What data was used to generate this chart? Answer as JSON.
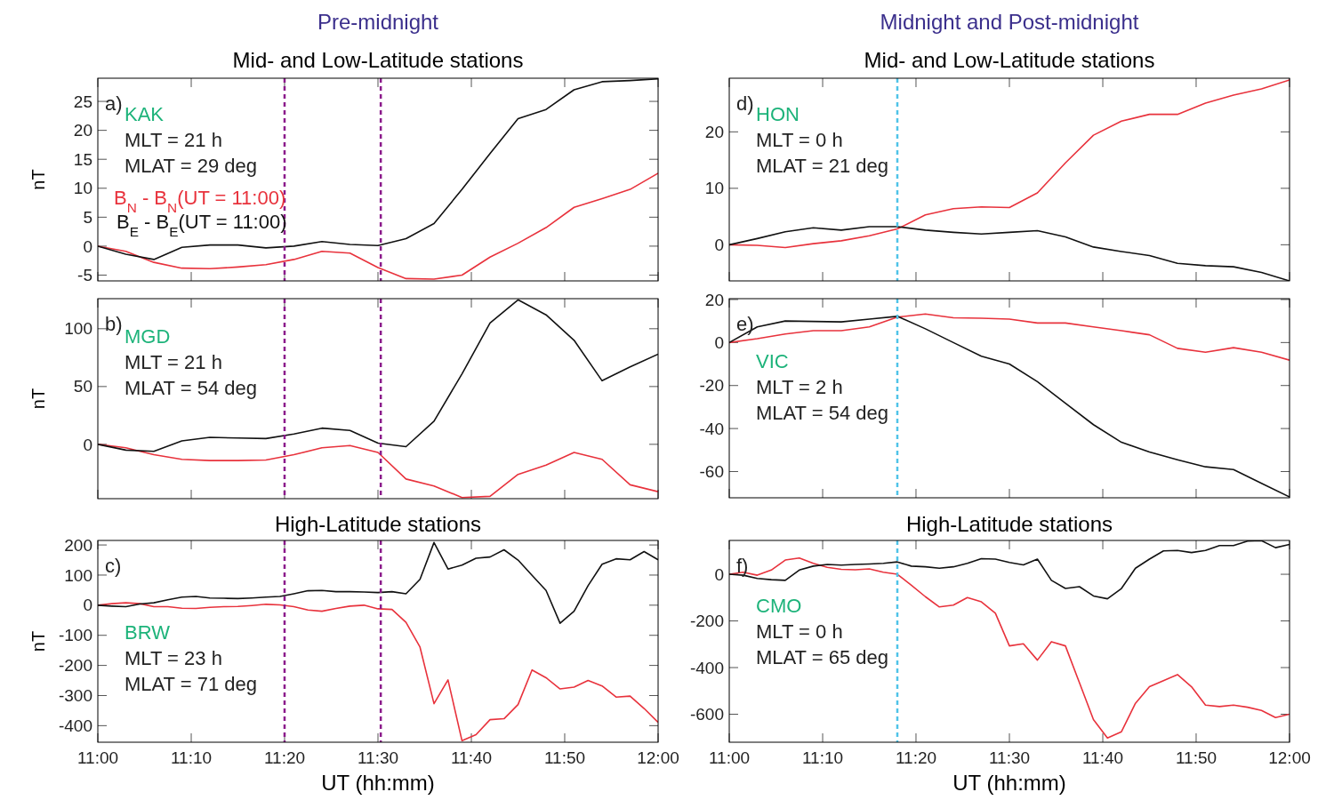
{
  "chart_data": [
    {
      "type": "line",
      "title": "Pre-midnight",
      "subtitle": "Mid- and Low-Latitude stations",
      "ylabel": "nT",
      "legend": "left",
      "tick_labels": "y",
      "x": [
        11,
        11.05,
        11.1,
        11.15,
        11.2,
        11.25,
        11.3,
        11.35,
        11.4,
        11.45,
        11.5,
        11.55,
        11.6,
        11.65,
        11.7,
        11.75,
        11.8,
        11.85,
        11.9,
        11.95,
        12
      ],
      "series": [
        {
          "name": "B$_{N}$ - B$_{N}$(UT = 11:00)",
          "color": "#e8323c",
          "values": [
            0,
            -0.9,
            -2.8,
            -3.8,
            -3.9,
            -3.6,
            -3.2,
            -2.3,
            -0.9,
            -1.2,
            -3.7,
            -5.6,
            -5.7,
            -5,
            -1.9,
            0.5,
            3.2,
            6.7,
            8.2,
            9.8,
            12.6
          ]
        },
        {
          "name": "B$_{E}$ - B$_{E}$(UT = 11:00)",
          "color": "#111111",
          "values": [
            0,
            -1.4,
            -2.3,
            -0.2,
            0.2,
            0.2,
            -0.3,
            0,
            0.8,
            0.3,
            0.1,
            1.3,
            3.9,
            9.8,
            16,
            22,
            23.6,
            27,
            28.4,
            28.6,
            28.9
          ]
        }
      ],
      "xlim": [
        11,
        12
      ],
      "xticks": [
        {
          "value": 11,
          "label": null
        },
        {
          "value": 11.1667,
          "label": null
        },
        {
          "value": 11.3333,
          "label": null
        },
        {
          "value": 11.5,
          "label": null
        },
        {
          "value": 11.6667,
          "label": null
        },
        {
          "value": 11.8333,
          "label": null
        },
        {
          "value": 12,
          "label": null
        }
      ],
      "ylim": [
        -6,
        29
      ],
      "yticks": [
        -5,
        0,
        5,
        10,
        15,
        20,
        25
      ],
      "annotations": [
        "a)",
        "KAK",
        "MLT = 21 h",
        "MLAT = 29 deg"
      ],
      "ref_lines": [
        {
          "axis": "x",
          "value": 11.3333,
          "color": "#8b1a8b",
          "line_style": "dashed"
        },
        {
          "axis": "x",
          "value": 11.505,
          "color": "#8b1a8b",
          "line_style": "dashed"
        }
      ]
    },
    {
      "type": "line",
      "ylabel": "nT",
      "tick_labels": "y",
      "x": [
        11,
        11.05,
        11.1,
        11.15,
        11.2,
        11.25,
        11.3,
        11.35,
        11.4,
        11.45,
        11.5,
        11.55,
        11.6,
        11.65,
        11.7,
        11.75,
        11.8,
        11.85,
        11.9,
        11.95,
        12
      ],
      "series": [
        {
          "color": "#e8323c",
          "values": [
            0,
            -3,
            -9,
            -13,
            -14,
            -14,
            -13.5,
            -9,
            -3,
            -1,
            -7,
            -30,
            -36,
            -46,
            -45,
            -26,
            -18,
            -7,
            -13,
            -35,
            -41
          ]
        },
        {
          "color": "#111111",
          "values": [
            0,
            -5,
            -6,
            3,
            6,
            5.5,
            5,
            9,
            14,
            12,
            1,
            -2,
            20,
            61,
            105,
            125,
            112,
            90,
            55,
            67,
            78
          ]
        }
      ],
      "xlim": [
        11,
        12
      ],
      "xticks": [
        {
          "value": 11,
          "label": null
        },
        {
          "value": 11.1667,
          "label": null
        },
        {
          "value": 11.3333,
          "label": null
        },
        {
          "value": 11.5,
          "label": null
        },
        {
          "value": 11.6667,
          "label": null
        },
        {
          "value": 11.8333,
          "label": null
        },
        {
          "value": 12,
          "label": null
        }
      ],
      "ylim": [
        -47,
        126
      ],
      "yticks": [
        0,
        50,
        100
      ],
      "annotations": [
        "b)",
        "MGD",
        "MLT = 21 h",
        "MLAT = 54 deg"
      ],
      "ref_lines": [
        {
          "axis": "x",
          "value": 11.3333,
          "color": "#8b1a8b",
          "line_style": "dashed"
        },
        {
          "axis": "x",
          "value": 11.505,
          "color": "#8b1a8b",
          "line_style": "dashed"
        }
      ]
    },
    {
      "type": "line",
      "title": "High-Latitude stations",
      "ylabel": "nT",
      "xlabel": "UT (hh:mm)",
      "x": [
        11,
        11.025,
        11.05,
        11.075,
        11.1,
        11.125,
        11.15,
        11.175,
        11.2,
        11.225,
        11.25,
        11.275,
        11.3,
        11.325,
        11.35,
        11.375,
        11.4,
        11.425,
        11.45,
        11.475,
        11.5,
        11.525,
        11.55,
        11.575,
        11.6,
        11.625,
        11.65,
        11.675,
        11.7,
        11.725,
        11.75,
        11.775,
        11.8,
        11.825,
        11.85,
        11.875,
        11.9,
        11.925,
        11.95,
        11.975,
        12
      ],
      "series": [
        {
          "color": "#e8323c",
          "values": [
            0,
            5,
            8,
            5,
            -5,
            -5,
            -10,
            -11,
            -7,
            -5,
            -4,
            -1,
            3,
            1,
            -5,
            -16,
            -20,
            -11,
            -3,
            0,
            -12,
            -14,
            -57,
            -139,
            -327,
            -248,
            -450,
            -430,
            -380,
            -377,
            -330,
            -215,
            -241,
            -278,
            -272,
            -250,
            -268,
            -305,
            -302,
            -343,
            -389
          ]
        },
        {
          "color": "#111111",
          "values": [
            0,
            -3,
            -5,
            4,
            8,
            18,
            27,
            29,
            24,
            23,
            22,
            24,
            27,
            29,
            38,
            48,
            49,
            45,
            45,
            44,
            42,
            45,
            38,
            86,
            208,
            120,
            133,
            156,
            160,
            184,
            150,
            99,
            49,
            -60,
            -20,
            65,
            136,
            154,
            151,
            178,
            151
          ]
        }
      ],
      "xlim": [
        11,
        12
      ],
      "xticks": [
        {
          "value": 11,
          "label": "11:00"
        },
        {
          "value": 11.1667,
          "label": "11:10"
        },
        {
          "value": 11.3333,
          "label": "11:20"
        },
        {
          "value": 11.5,
          "label": "11:30"
        },
        {
          "value": 11.6667,
          "label": "11:40"
        },
        {
          "value": 11.8333,
          "label": "11:50"
        },
        {
          "value": 12,
          "label": "12:00"
        }
      ],
      "ylim": [
        -455,
        215
      ],
      "yticks": [
        -400,
        -300,
        -200,
        -100,
        0,
        100,
        200
      ],
      "annotations": [
        "c)",
        "BRW",
        "MLT = 23 h",
        "MLAT = 71 deg"
      ],
      "ref_lines": [
        {
          "axis": "x",
          "value": 11.3333,
          "color": "#8b1a8b",
          "line_style": "dashed"
        },
        {
          "axis": "x",
          "value": 11.505,
          "color": "#8b1a8b",
          "line_style": "dashed"
        }
      ]
    },
    {
      "type": "line",
      "title": "Midnight and Post-midnight",
      "subtitle": "Mid- and Low-Latitude stations",
      "tick_labels": "y",
      "x": [
        11,
        11.05,
        11.1,
        11.15,
        11.2,
        11.25,
        11.3,
        11.35,
        11.4,
        11.45,
        11.5,
        11.55,
        11.6,
        11.65,
        11.7,
        11.75,
        11.8,
        11.85,
        11.9,
        11.95,
        12
      ],
      "series": [
        {
          "color": "#e8323c",
          "values": [
            0,
            -0.1,
            -0.5,
            0.2,
            0.7,
            1.6,
            2.8,
            5.3,
            6.4,
            6.7,
            6.6,
            9.2,
            14.5,
            19.4,
            21.9,
            23.1,
            23.1,
            25.1,
            26.5,
            27.6,
            29.2
          ]
        },
        {
          "color": "#111111",
          "values": [
            0,
            1.1,
            2.3,
            3,
            2.6,
            3.2,
            3.2,
            2.6,
            2.2,
            1.9,
            2.2,
            2.5,
            1.4,
            -0.4,
            -1.2,
            -1.9,
            -3.3,
            -3.7,
            -3.9,
            -4.9,
            -6.4
          ]
        }
      ],
      "xlim": [
        11,
        12
      ],
      "xticks": [
        {
          "value": 11,
          "label": null
        },
        {
          "value": 11.1667,
          "label": null
        },
        {
          "value": 11.3333,
          "label": null
        },
        {
          "value": 11.5,
          "label": null
        },
        {
          "value": 11.6667,
          "label": null
        },
        {
          "value": 11.8333,
          "label": null
        },
        {
          "value": 12,
          "label": null
        }
      ],
      "ylim": [
        -6.4,
        29.5
      ],
      "yticks": [
        0,
        10,
        20
      ],
      "annotations": [
        "d)",
        "HON",
        "MLT = 0 h",
        "MLAT = 21 deg"
      ],
      "ref_lines": [
        {
          "axis": "x",
          "value": 11.3,
          "color": "#4fc3e8",
          "line_style": "dashed"
        }
      ]
    },
    {
      "type": "line",
      "tick_labels": "y",
      "x": [
        11,
        11.05,
        11.1,
        11.15,
        11.2,
        11.25,
        11.3,
        11.35,
        11.4,
        11.45,
        11.5,
        11.55,
        11.6,
        11.65,
        11.7,
        11.75,
        11.8,
        11.85,
        11.9,
        11.95,
        12
      ],
      "series": [
        {
          "color": "#e8323c",
          "values": [
            0,
            1.8,
            4,
            5.5,
            5.5,
            7.3,
            11.8,
            13.3,
            11.5,
            11.3,
            10.9,
            9.1,
            9.1,
            7.3,
            5.5,
            3.6,
            -2.7,
            -4.5,
            -2.4,
            -4.5,
            -8.2
          ]
        },
        {
          "color": "#111111",
          "values": [
            0,
            7.3,
            10,
            9.8,
            9.6,
            10.9,
            12.2,
            6.4,
            0,
            -6.4,
            -10,
            -18.2,
            -28.2,
            -38.2,
            -46.4,
            -50.9,
            -54.5,
            -57.8,
            -59.1,
            -65.5,
            -71.8
          ]
        }
      ],
      "xlim": [
        11,
        12
      ],
      "xticks": [
        {
          "value": 11,
          "label": null
        },
        {
          "value": 11.1667,
          "label": null
        },
        {
          "value": 11.3333,
          "label": null
        },
        {
          "value": 11.5,
          "label": null
        },
        {
          "value": 11.6667,
          "label": null
        },
        {
          "value": 11.8333,
          "label": null
        },
        {
          "value": 12,
          "label": null
        }
      ],
      "ylim": [
        -72.2,
        20.4
      ],
      "yticks": [
        -60,
        -40,
        -20,
        0,
        20
      ],
      "annotations": [
        "e)",
        "VIC",
        "MLT = 2 h",
        "MLAT = 54 deg"
      ],
      "ref_lines": [
        {
          "axis": "x",
          "value": 11.3,
          "color": "#4fc3e8",
          "line_style": "dashed"
        }
      ]
    },
    {
      "type": "line",
      "title": "High-Latitude stations",
      "xlabel": "UT (hh:mm)",
      "x": [
        11,
        11.025,
        11.05,
        11.075,
        11.1,
        11.125,
        11.15,
        11.175,
        11.2,
        11.225,
        11.25,
        11.275,
        11.3,
        11.325,
        11.35,
        11.375,
        11.4,
        11.425,
        11.45,
        11.475,
        11.5,
        11.525,
        11.55,
        11.575,
        11.6,
        11.625,
        11.65,
        11.675,
        11.7,
        11.725,
        11.75,
        11.775,
        11.8,
        11.825,
        11.85,
        11.875,
        11.9,
        11.925,
        11.95,
        11.975,
        12
      ],
      "series": [
        {
          "color": "#e8323c",
          "values": [
            0,
            9,
            -4,
            18,
            61,
            70,
            47,
            30,
            21,
            19,
            23,
            9,
            0,
            -47,
            -96,
            -140,
            -132,
            -100,
            -118,
            -167,
            -307,
            -298,
            -368,
            -289,
            -307,
            -465,
            -623,
            -702,
            -675,
            -553,
            -482,
            -456,
            -430,
            -482,
            -561,
            -567,
            -561,
            -570,
            -584,
            -614,
            -600
          ]
        },
        {
          "color": "#111111",
          "values": [
            0,
            -4,
            -18,
            -23,
            -26,
            18,
            35,
            42,
            39,
            42,
            44,
            47,
            53,
            35,
            32,
            26,
            32,
            47,
            67,
            65,
            51,
            40,
            65,
            -26,
            -61,
            -53,
            -93,
            -105,
            -61,
            26,
            65,
            100,
            102,
            93,
            102,
            123,
            123,
            142,
            144,
            114,
            128
          ]
        }
      ],
      "xlim": [
        11,
        12
      ],
      "xticks": [
        {
          "value": 11,
          "label": "11:00"
        },
        {
          "value": 11.1667,
          "label": "11:10"
        },
        {
          "value": 11.3333,
          "label": "11:20"
        },
        {
          "value": 11.5,
          "label": "11:30"
        },
        {
          "value": 11.6667,
          "label": "11:40"
        },
        {
          "value": 11.8333,
          "label": "11:50"
        },
        {
          "value": 12,
          "label": "12:00"
        }
      ],
      "ylim": [
        -720,
        145
      ],
      "yticks": [
        -600,
        -400,
        -200,
        0
      ],
      "annotations": [
        "f)",
        "CMO",
        "MLT = 0 h",
        "MLAT = 65 deg"
      ],
      "ref_lines": [
        {
          "axis": "x",
          "value": 11.3,
          "color": "#4fc3e8",
          "line_style": "dashed"
        }
      ]
    }
  ]
}
